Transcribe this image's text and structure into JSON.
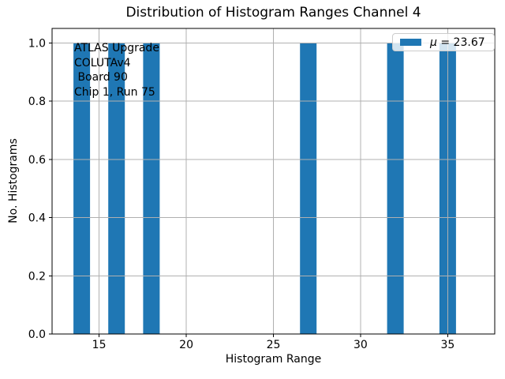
{
  "chart_data": {
    "type": "bar",
    "title": "Distribution of Histogram Ranges Channel 4",
    "xlabel": "Histogram Range",
    "ylabel": "No. Histograms",
    "x": [
      14,
      16,
      18,
      27,
      32,
      35
    ],
    "values": [
      1.0,
      1.0,
      1.0,
      1.0,
      1.0,
      1.0
    ],
    "bar_width": 0.95,
    "xlim": [
      12.3,
      37.7
    ],
    "ylim": [
      0,
      1.05
    ],
    "xticks": [
      15,
      20,
      25,
      30,
      35
    ],
    "xtick_labels": [
      "15",
      "20",
      "25",
      "30",
      "35"
    ],
    "yticks": [
      0,
      0.2,
      0.4,
      0.6,
      0.8,
      1.0
    ],
    "ytick_labels": [
      "0.0",
      "0.2",
      "0.4",
      "0.6",
      "0.8",
      "1.0"
    ],
    "grid": true,
    "grid_above_bars": true,
    "legend": {
      "symbol": "μ",
      "rest": " = 23.67",
      "position": "upper right"
    },
    "annotation_lines": [
      "ATLAS Upgrade",
      "COLUTAv4",
      " Board 90",
      "Chip 1, Run 75"
    ],
    "colors": {
      "bar": "#1f77b4",
      "grid": "#b0b0b0",
      "spine": "#000000",
      "text": "#000000",
      "legend_border": "#cccccc",
      "legend_bg": "rgba(255,255,255,0.8)"
    }
  }
}
